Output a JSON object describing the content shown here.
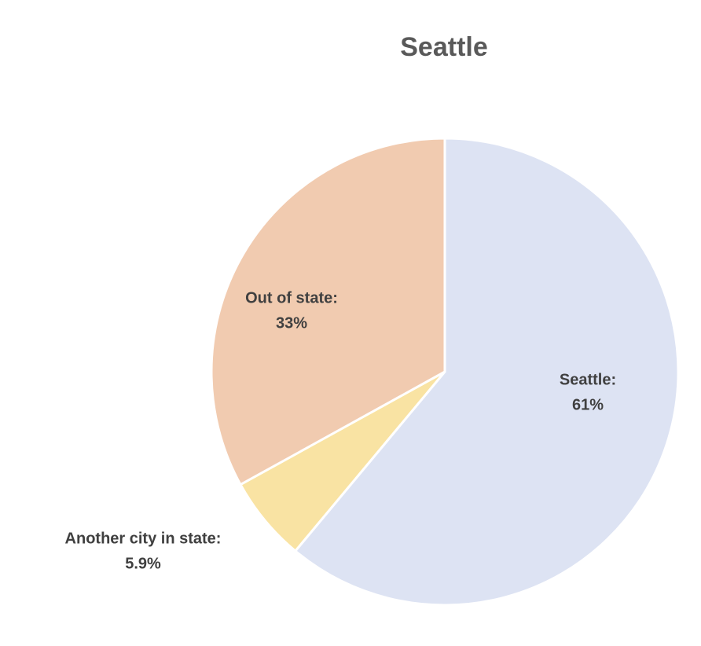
{
  "chart_data": {
    "type": "pie",
    "title": "Seattle",
    "categories": [
      "Seattle:",
      "Another city in state:",
      "Out of state:"
    ],
    "values": [
      61,
      5.9,
      33
    ],
    "value_labels": [
      "61%",
      "5.9%",
      "33%"
    ],
    "colors": [
      "#dde3f3",
      "#f9e3a3",
      "#f1cbb0"
    ]
  }
}
